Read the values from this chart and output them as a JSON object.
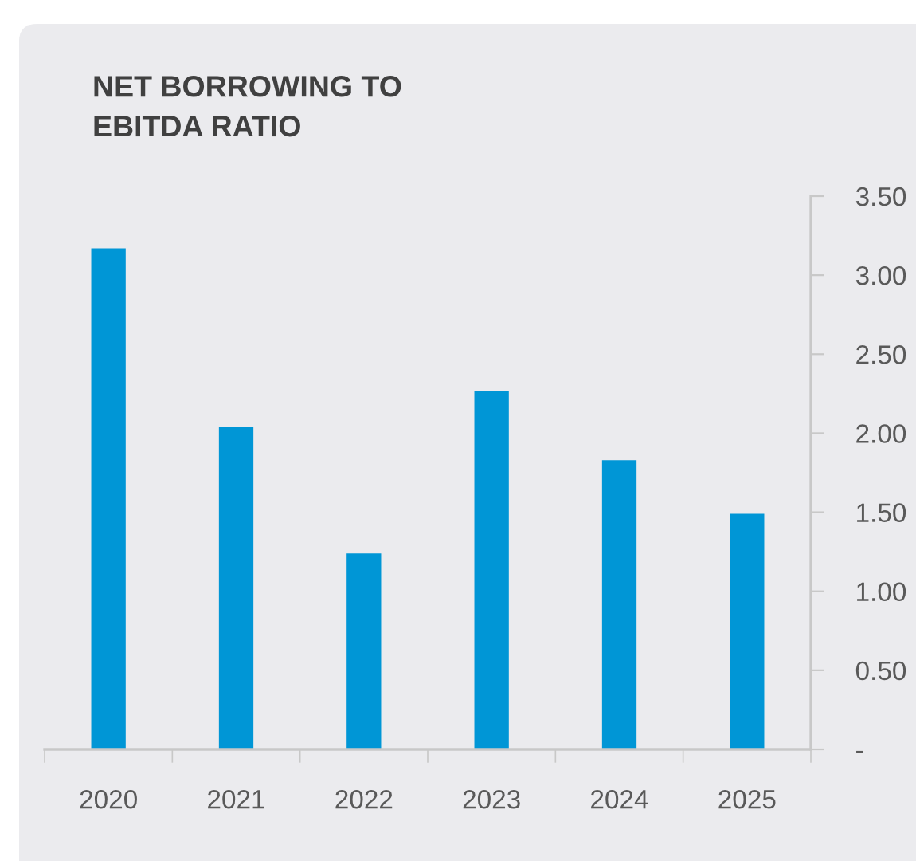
{
  "chart_data": {
    "type": "bar",
    "title": "NET BORROWING TO\nEBITDA RATIO",
    "categories": [
      "2020",
      "2021",
      "2022",
      "2023",
      "2024",
      "2025"
    ],
    "values": [
      3.17,
      2.04,
      1.24,
      2.27,
      1.83,
      1.49
    ],
    "color": "#0096d6",
    "ylim": [
      0,
      3.5
    ],
    "yticks": [
      {
        "value": 0,
        "label": "-"
      },
      {
        "value": 0.5,
        "label": "0.50"
      },
      {
        "value": 1,
        "label": "1.00"
      },
      {
        "value": 1.5,
        "label": "1.50"
      },
      {
        "value": 2,
        "label": "2.00"
      },
      {
        "value": 2.5,
        "label": "2.50"
      },
      {
        "value": 3,
        "label": "3.00"
      },
      {
        "value": 3.5,
        "label": "3.50"
      }
    ],
    "grid": false
  }
}
